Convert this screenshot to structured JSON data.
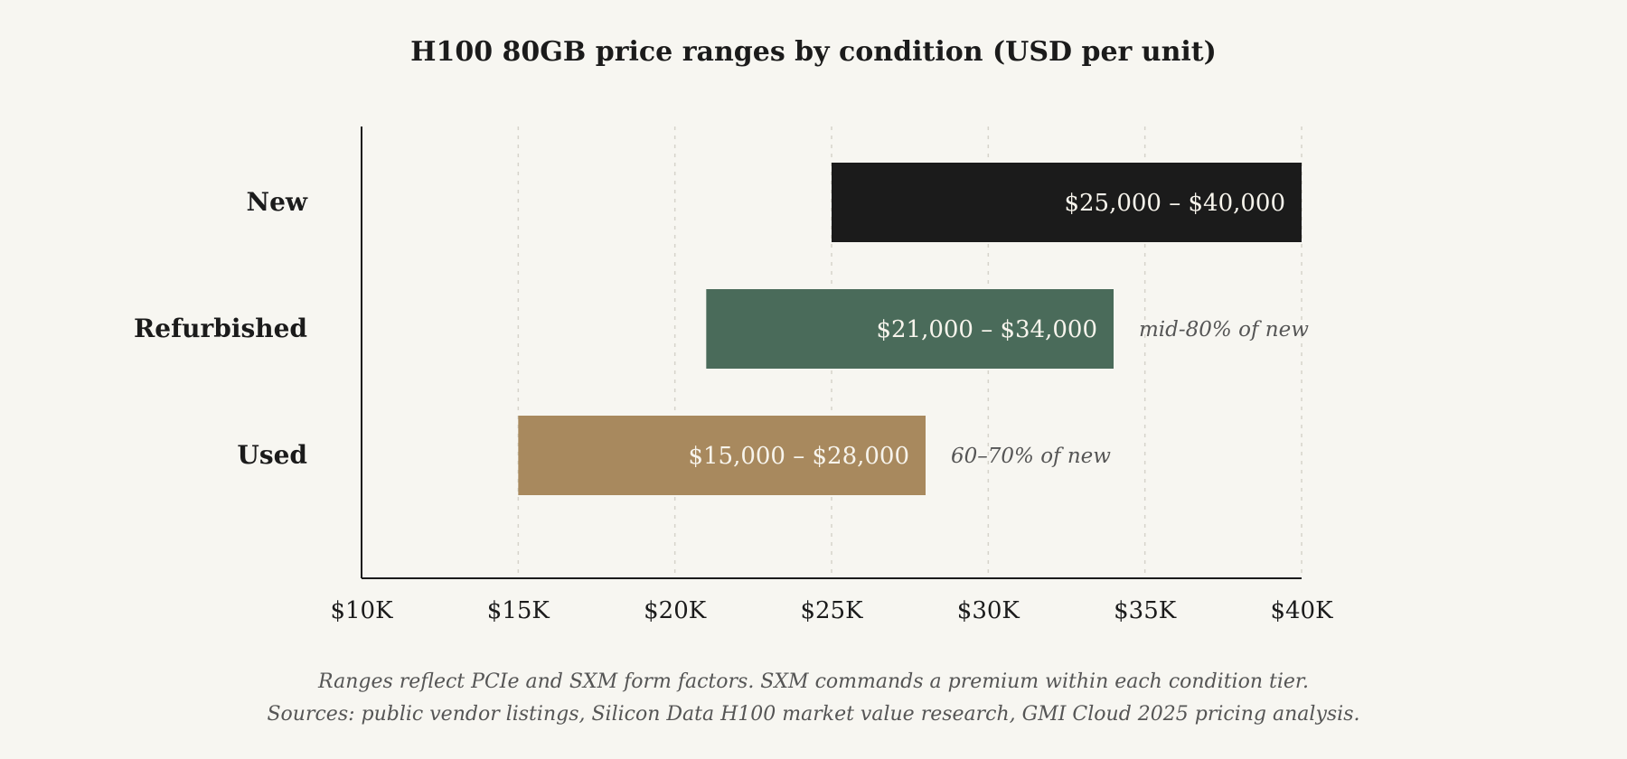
{
  "chart_data": {
    "type": "bar",
    "orientation": "horizontal-range",
    "title": "H100 80GB price ranges by condition (USD per unit)",
    "categories": [
      "New",
      "Refurbished",
      "Used"
    ],
    "ranges": [
      {
        "category": "New",
        "low": 25000,
        "high": 40000,
        "label": "$25,000 – $40,000",
        "note": "",
        "color": "#1b1b1b"
      },
      {
        "category": "Refurbished",
        "low": 21000,
        "high": 34000,
        "label": "$21,000 – $34,000",
        "note": "mid-80% of new",
        "color": "#4a6b5a"
      },
      {
        "category": "Used",
        "low": 15000,
        "high": 28000,
        "label": "$15,000 – $28,000",
        "note": "60–70% of new",
        "color": "#a8895e"
      }
    ],
    "xlabel": "",
    "ylabel": "",
    "xlim": [
      10000,
      40000
    ],
    "xticks": [
      10000,
      15000,
      20000,
      25000,
      30000,
      35000,
      40000
    ],
    "xtick_labels": [
      "$10K",
      "$15K",
      "$20K",
      "$25K",
      "$30K",
      "$35K",
      "$40K"
    ],
    "grid": "vertical-dashed",
    "footnotes": [
      "Ranges reflect PCIe and SXM form factors. SXM commands a premium within each condition tier.",
      "Sources: public vendor listings, Silicon Data H100 market value research, GMI Cloud 2025 pricing analysis."
    ]
  }
}
